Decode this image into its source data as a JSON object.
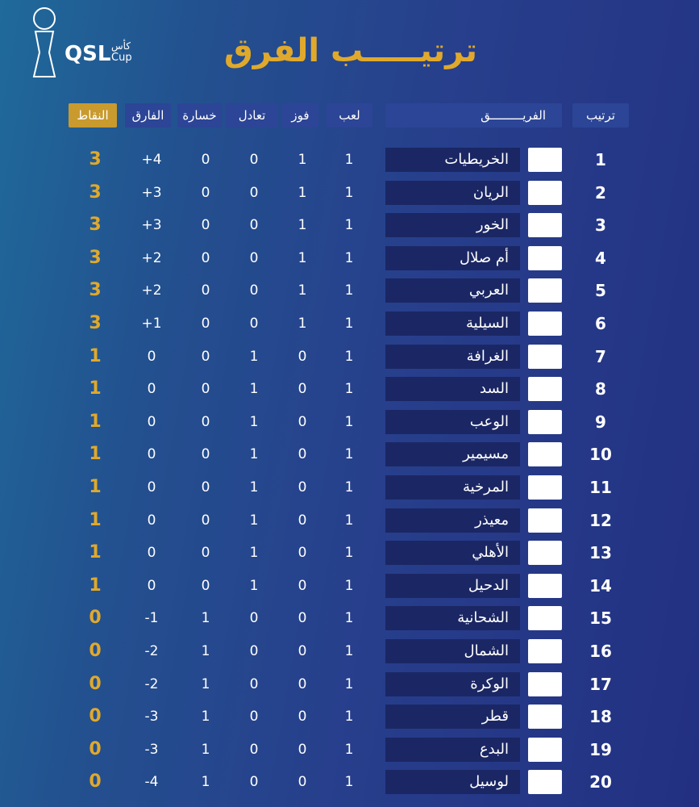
{
  "header": {
    "title": "ترتيـــــب الفرق",
    "logo_text": "QSL",
    "logo_ar": "كأس",
    "logo_en": "Cup"
  },
  "table": {
    "columns": [
      "ترتيب",
      "الفريـــــــــق",
      "لعب",
      "فوز",
      "تعادل",
      "خسارة",
      "الفارق",
      "النقاط"
    ],
    "rows": [
      [
        1,
        "الخريطيات",
        1,
        1,
        0,
        0,
        "+4",
        3
      ],
      [
        2,
        "الريان",
        1,
        1,
        0,
        0,
        "+3",
        3
      ],
      [
        3,
        "الخور",
        1,
        1,
        0,
        0,
        "+3",
        3
      ],
      [
        4,
        "أم صلال",
        1,
        1,
        0,
        0,
        "+2",
        3
      ],
      [
        5,
        "العربي",
        1,
        1,
        0,
        0,
        "+2",
        3
      ],
      [
        6,
        "السيلية",
        1,
        1,
        0,
        0,
        "+1",
        3
      ],
      [
        7,
        "الغرافة",
        1,
        0,
        1,
        0,
        0,
        1
      ],
      [
        8,
        "السد",
        1,
        0,
        1,
        0,
        0,
        1
      ],
      [
        9,
        "الوعب",
        1,
        0,
        1,
        0,
        0,
        1
      ],
      [
        10,
        "مسيمير",
        1,
        0,
        1,
        0,
        0,
        1
      ],
      [
        11,
        "المرخية",
        1,
        0,
        1,
        0,
        0,
        1
      ],
      [
        12,
        "معيذر",
        1,
        0,
        1,
        0,
        0,
        1
      ],
      [
        13,
        "الأهلي",
        1,
        0,
        1,
        0,
        0,
        1
      ],
      [
        14,
        "الدحيل",
        1,
        0,
        1,
        0,
        0,
        1
      ],
      [
        15,
        "الشحانية",
        1,
        0,
        0,
        1,
        "-1",
        0
      ],
      [
        16,
        "الشمال",
        1,
        0,
        0,
        1,
        "-2",
        0
      ],
      [
        17,
        "الوكرة",
        1,
        0,
        0,
        1,
        "-2",
        0
      ],
      [
        18,
        "قطر",
        1,
        0,
        0,
        1,
        "-3",
        0
      ],
      [
        19,
        "البدع",
        1,
        0,
        0,
        1,
        "-3",
        0
      ],
      [
        20,
        "لوسيل",
        1,
        0,
        0,
        1,
        "-4",
        0
      ]
    ]
  }
}
